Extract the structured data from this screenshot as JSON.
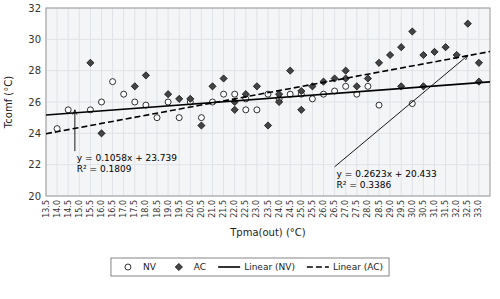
{
  "chart_data": {
    "type": "scatter",
    "xlabel": "Tpma(out) (°C)",
    "ylabel": "Tcomf (°C)",
    "xlim": [
      13.5,
      33.5
    ],
    "ylim": [
      20,
      32
    ],
    "xticks": [
      13.5,
      {
        "value": 14,
        "label": "14.0"
      },
      14.5,
      {
        "value": 15,
        "label": "15.0"
      },
      15.5,
      {
        "value": 16,
        "label": "16.0"
      },
      16.5,
      {
        "value": 17,
        "label": "17.0"
      },
      17.5,
      {
        "value": 18,
        "label": "18.0"
      },
      18.5,
      {
        "value": 19,
        "label": "19.0"
      },
      19.5,
      {
        "value": 20,
        "label": "20.0"
      },
      20.5,
      {
        "value": 21,
        "label": "21.0"
      },
      21.5,
      {
        "value": 22,
        "label": "22.0"
      },
      22.5,
      {
        "value": 23,
        "label": "23.0"
      },
      23.5,
      {
        "value": 24,
        "label": "24.0"
      },
      24.5,
      {
        "value": 25,
        "label": "25.0"
      },
      25.5,
      {
        "value": 26,
        "label": "26.0"
      },
      26.5,
      {
        "value": 27,
        "label": "27.0"
      },
      27.5,
      {
        "value": 28,
        "label": "28.0"
      },
      28.5,
      {
        "value": 29,
        "label": "29.0"
      },
      29.5,
      {
        "value": 30,
        "label": "30.0"
      },
      30.5,
      {
        "value": 31,
        "label": "31.0"
      },
      31.5,
      {
        "value": 32,
        "label": "32.0"
      },
      32.5,
      {
        "value": 33,
        "label": "33.0"
      }
    ],
    "yticks": [
      20,
      22,
      24,
      26,
      28,
      30,
      32
    ],
    "grid": true,
    "legend": "bottom",
    "series": [
      {
        "name": "NV",
        "type": "scatter",
        "marker": "circle",
        "color": "#ffffff",
        "x": [
          14.0,
          14.5,
          15.5,
          16.0,
          16.5,
          17.0,
          17.5,
          18.0,
          18.5,
          19.0,
          19.5,
          20.0,
          20.5,
          21.0,
          21.5,
          22.0,
          22.5,
          22.5,
          23.0,
          23.5,
          24.0,
          24.5,
          25.0,
          25.5,
          26.0,
          26.5,
          27.0,
          27.5,
          28.0,
          28.5,
          30.0
        ],
        "values": [
          24.3,
          25.5,
          25.5,
          26.0,
          27.3,
          26.5,
          26.0,
          25.8,
          25.0,
          26.0,
          25.0,
          26.0,
          25.0,
          26.0,
          26.5,
          26.5,
          26.2,
          25.5,
          25.5,
          26.5,
          26.2,
          26.5,
          26.5,
          26.2,
          26.5,
          26.7,
          27.0,
          26.5,
          27.0,
          25.8,
          25.9
        ]
      },
      {
        "name": "AC",
        "type": "scatter",
        "marker": "diamond",
        "color": "#444444",
        "x": [
          15.5,
          16.0,
          17.5,
          18.0,
          19.0,
          19.5,
          20.0,
          20.5,
          21.0,
          21.5,
          22.0,
          22.0,
          22.5,
          23.0,
          23.5,
          24.0,
          24.0,
          24.5,
          25.0,
          25.0,
          25.5,
          26.0,
          26.5,
          27.0,
          27.0,
          27.5,
          28.0,
          28.5,
          29.0,
          29.5,
          29.5,
          30.0,
          30.5,
          30.5,
          31.0,
          31.5,
          32.0,
          32.5,
          33.0,
          33.0
        ],
        "values": [
          28.5,
          24.0,
          27.0,
          27.7,
          26.5,
          26.2,
          26.2,
          24.5,
          27.0,
          27.5,
          26.0,
          25.5,
          26.5,
          27.0,
          24.5,
          26.0,
          26.5,
          28.0,
          25.5,
          26.7,
          27.0,
          27.3,
          27.5,
          27.5,
          28.0,
          27.0,
          27.5,
          28.5,
          29.0,
          27.0,
          29.5,
          30.5,
          27.0,
          29.0,
          29.2,
          29.5,
          29.0,
          31.0,
          28.5,
          27.3
        ]
      },
      {
        "name": "Linear (NV)",
        "type": "line",
        "line_style": "solid",
        "color": "#000000",
        "x": [
          13.5,
          33.5
        ],
        "values": [
          25.1673,
          27.2833
        ]
      },
      {
        "name": "Linear (AC)",
        "type": "line",
        "line_style": "dashed",
        "color": "#000000",
        "x": [
          13.5,
          33.5
        ],
        "values": [
          23.97405,
          29.22005
        ]
      }
    ],
    "annotations": [
      {
        "text": [
          "y = 0.1058x + 23.739",
          "R² = 0.1809"
        ],
        "x": 14.8,
        "y": 25.5,
        "text_x": 14.8,
        "text_y": 22.8
      },
      {
        "text": [
          "y = 0.2623x + 20.433",
          "R² = 0.3386"
        ],
        "x": 32.5,
        "y": 28.97,
        "text_x": 26.5,
        "text_y": 21.8
      }
    ]
  }
}
